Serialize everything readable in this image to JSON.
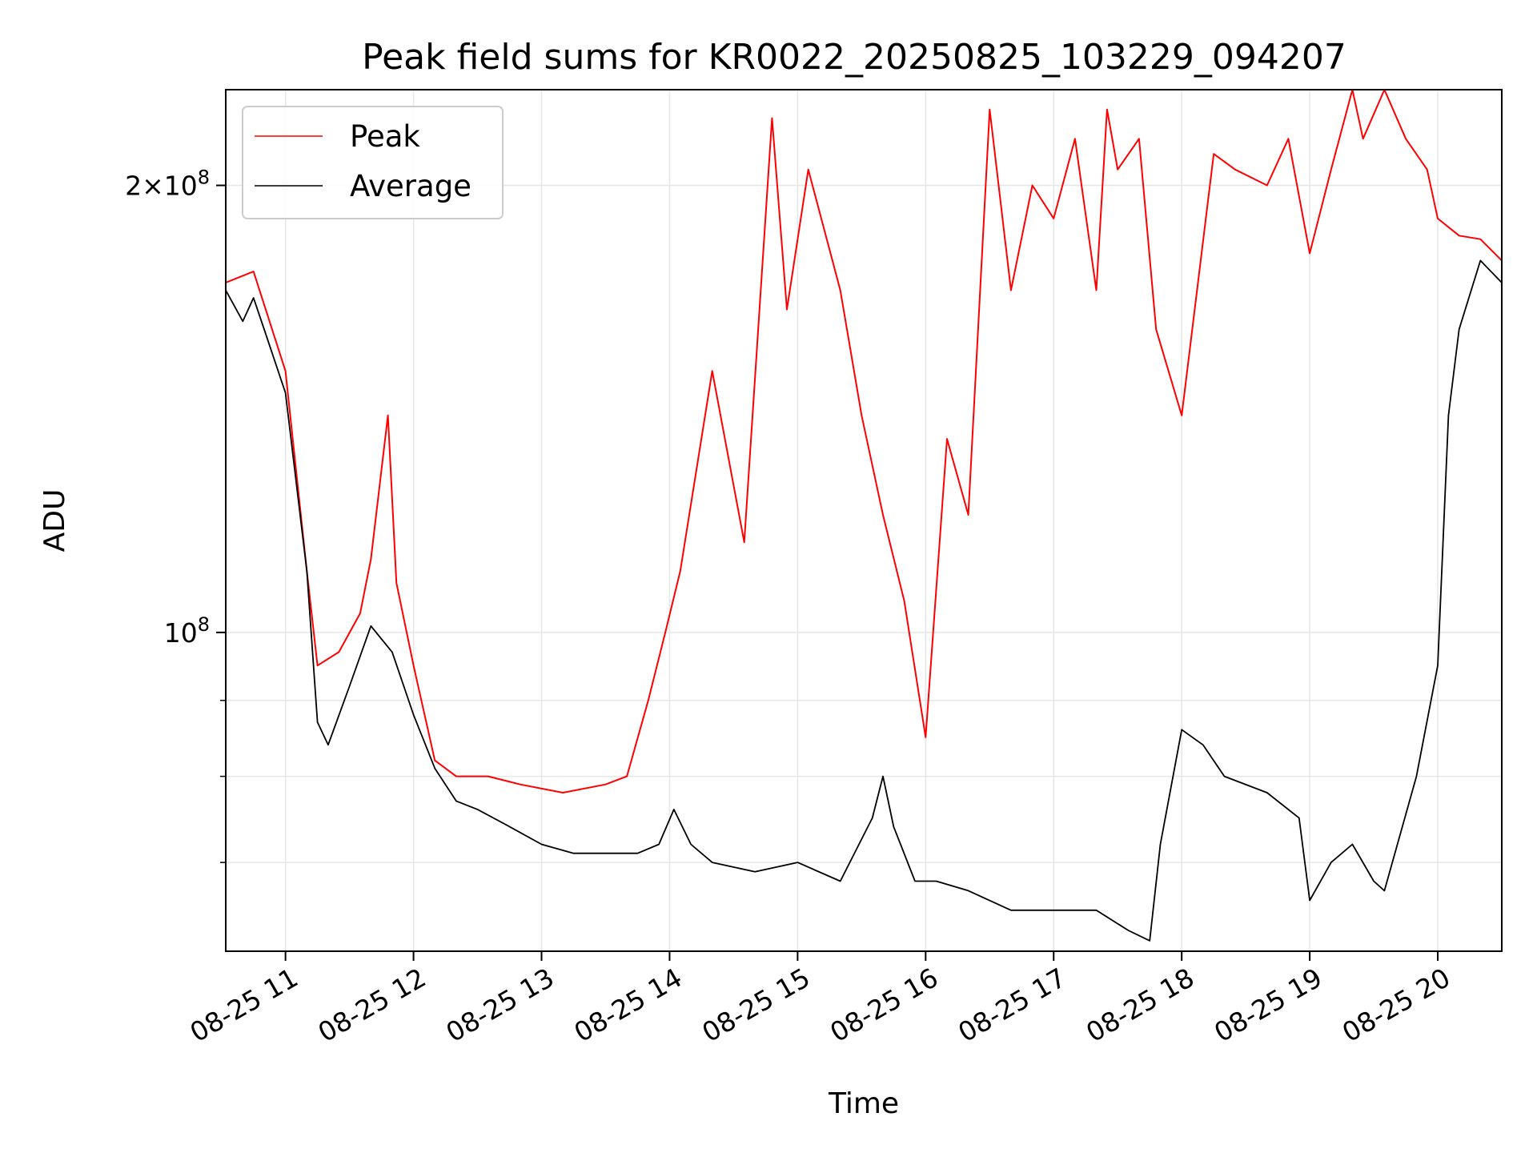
{
  "chart_data": {
    "type": "line",
    "title": "Peak field sums for KR0022_20250825_103229_094207",
    "xlabel": "Time",
    "ylabel": "ADU",
    "x_scale": "time",
    "y_scale": "log",
    "xlim": [
      "2025-08-25T10:32",
      "2025-08-25T20:30"
    ],
    "ylim": [
      61000000,
      232000000
    ],
    "grid": true,
    "legend_position": "upper-left",
    "x_ticks": [
      "2025-08-25T11:00",
      "2025-08-25T12:00",
      "2025-08-25T13:00",
      "2025-08-25T14:00",
      "2025-08-25T15:00",
      "2025-08-25T16:00",
      "2025-08-25T17:00",
      "2025-08-25T18:00",
      "2025-08-25T19:00",
      "2025-08-25T20:00"
    ],
    "x_tick_labels": [
      "08-25 11",
      "08-25 12",
      "08-25 13",
      "08-25 14",
      "08-25 15",
      "08-25 16",
      "08-25 17",
      "08-25 18",
      "08-25 19",
      "08-25 20"
    ],
    "y_major_ticks": [
      100000000,
      200000000
    ],
    "y_major_tick_labels": [
      "10^8",
      "2×10^8"
    ],
    "y_minor_ticks": [
      60000000,
      70000000,
      80000000,
      90000000
    ],
    "series": [
      {
        "name": "Peak",
        "color": "#ff0000",
        "x": [
          "10:32",
          "10:45",
          "11:00",
          "11:10",
          "11:15",
          "11:25",
          "11:35",
          "11:40",
          "11:48",
          "11:52",
          "12:00",
          "12:10",
          "12:20",
          "12:35",
          "12:50",
          "13:10",
          "13:30",
          "13:40",
          "13:50",
          "13:58",
          "14:05",
          "14:20",
          "14:35",
          "14:48",
          "14:55",
          "15:05",
          "15:20",
          "15:30",
          "15:40",
          "15:50",
          "16:00",
          "16:10",
          "16:20",
          "16:30",
          "16:40",
          "16:50",
          "17:00",
          "17:10",
          "17:20",
          "17:25",
          "17:30",
          "17:40",
          "17:48",
          "18:00",
          "18:15",
          "18:25",
          "18:40",
          "18:50",
          "19:00",
          "19:10",
          "19:20",
          "19:25",
          "19:35",
          "19:45",
          "19:55",
          "20:00",
          "20:10",
          "20:20",
          "20:30"
        ],
        "y": [
          172000000,
          175000000,
          150000000,
          110000000,
          95000000,
          97000000,
          103000000,
          112000000,
          140000000,
          108000000,
          95000000,
          82000000,
          80000000,
          80000000,
          79000000,
          78000000,
          79000000,
          80000000,
          90000000,
          100000000,
          110000000,
          150000000,
          115000000,
          222000000,
          165000000,
          205000000,
          170000000,
          140000000,
          120000000,
          105000000,
          85000000,
          135000000,
          120000000,
          225000000,
          170000000,
          200000000,
          190000000,
          215000000,
          170000000,
          225000000,
          205000000,
          215000000,
          160000000,
          140000000,
          210000000,
          205000000,
          200000000,
          215000000,
          180000000,
          205000000,
          232000000,
          215000000,
          232000000,
          215000000,
          205000000,
          190000000,
          185000000,
          184000000,
          178000000
        ]
      },
      {
        "name": "Average",
        "color": "#000000",
        "x": [
          "10:32",
          "10:40",
          "10:45",
          "10:50",
          "11:00",
          "11:10",
          "11:15",
          "11:20",
          "11:30",
          "11:40",
          "11:50",
          "12:00",
          "12:10",
          "12:20",
          "12:30",
          "12:45",
          "13:00",
          "13:15",
          "13:30",
          "13:45",
          "13:55",
          "14:02",
          "14:10",
          "14:20",
          "14:40",
          "15:00",
          "15:20",
          "15:35",
          "15:40",
          "15:45",
          "15:55",
          "16:05",
          "16:20",
          "16:40",
          "17:00",
          "17:20",
          "17:35",
          "17:45",
          "17:50",
          "18:00",
          "18:10",
          "18:20",
          "18:40",
          "18:55",
          "19:00",
          "19:10",
          "19:20",
          "19:30",
          "19:35",
          "19:50",
          "20:00",
          "20:05",
          "20:10",
          "20:20",
          "20:30"
        ],
        "y": [
          170000000,
          162000000,
          168000000,
          160000000,
          145000000,
          110000000,
          87000000,
          84000000,
          92000000,
          101000000,
          97000000,
          88000000,
          81000000,
          77000000,
          76000000,
          74000000,
          72000000,
          71000000,
          71000000,
          71000000,
          72000000,
          76000000,
          72000000,
          70000000,
          69000000,
          70000000,
          68000000,
          75000000,
          80000000,
          74000000,
          68000000,
          68000000,
          67000000,
          65000000,
          65000000,
          65000000,
          63000000,
          62000000,
          72000000,
          86000000,
          84000000,
          80000000,
          78000000,
          75000000,
          66000000,
          70000000,
          72000000,
          68000000,
          67000000,
          80000000,
          95000000,
          140000000,
          160000000,
          178000000,
          172000000
        ]
      }
    ]
  }
}
